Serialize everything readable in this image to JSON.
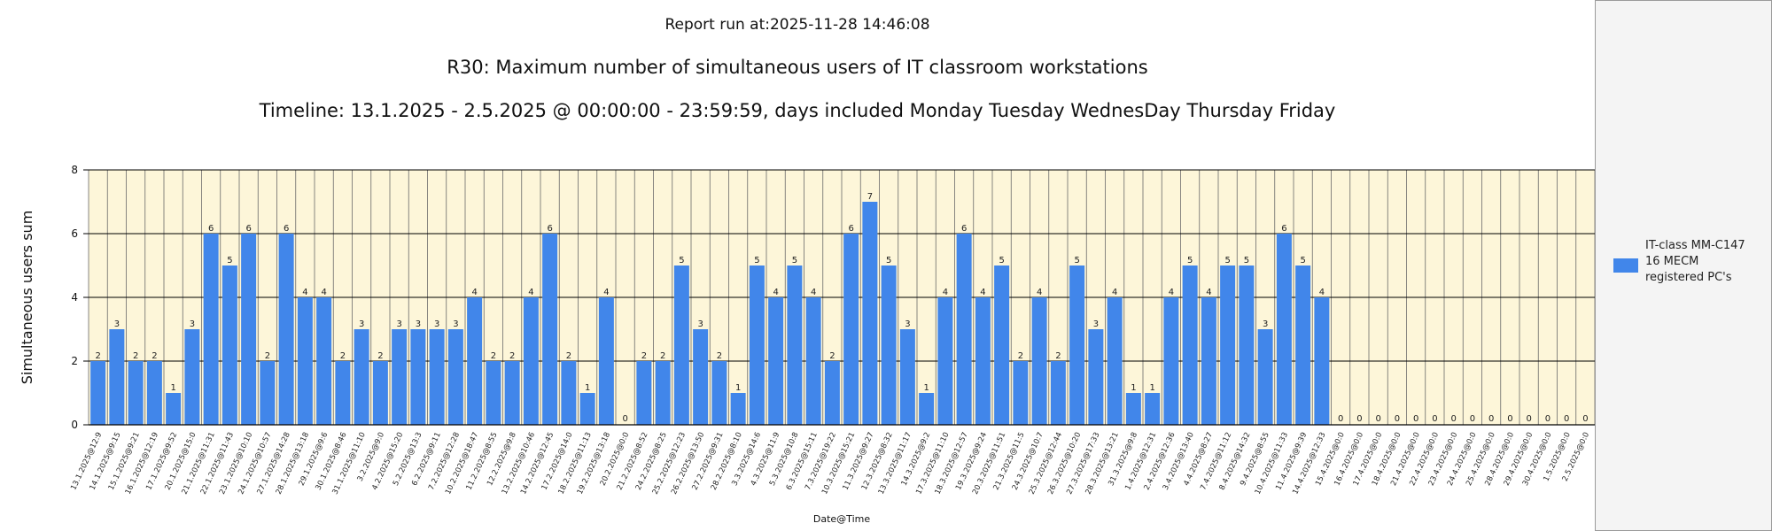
{
  "header": {
    "report_run": "Report run at:2025-11-28 14:46:08",
    "title": "R30: Maximum number of simultaneous users of IT classroom workstations",
    "subtitle": "Timeline: 13.1.2025  - 2.5.2025  @  00:00:00 -  23:59:59, days included Monday Tuesday WednesDay Thursday Friday"
  },
  "legend": {
    "label": "IT-class MM-C147\n16 MECM\n registered PC's"
  },
  "colors": {
    "bar": "#4186ea",
    "plot_bg": "#fdf6d9",
    "grid": "#000000",
    "vgrid": "#6a6a6a"
  },
  "chart_data": {
    "type": "bar",
    "xlabel": "Date@Time",
    "ylabel": "Simultaneous users sum",
    "ylim": [
      0,
      8
    ],
    "yticks": [
      0,
      2,
      4,
      6,
      8
    ],
    "grid": true,
    "legend_position": "right",
    "series": [
      {
        "name": "IT-class MM-C147 16 MECM registered PC's"
      }
    ],
    "categories": [
      "13.1.2025@12:9",
      "14.1.2025@9:15",
      "15.1.2025@9:21",
      "16.1.2025@12:19",
      "17.1.2025@9:52",
      "20.1.2025@15:0",
      "21.1.2025@11:31",
      "22.1.2025@11:43",
      "23.1.2025@10:10",
      "24.1.2025@10:57",
      "27.1.2025@14:28",
      "28.1.2025@13:18",
      "29.1.2025@9:6",
      "30.1.2025@8:46",
      "31.1.2025@11:10",
      "3.2.2025@9:0",
      "4.2.2025@15:20",
      "5.2.2025@13:3",
      "6.2.2025@9:11",
      "7.2.2025@12:28",
      "10.2.2025@18:47",
      "11.2.2025@8:55",
      "12.2.2025@9:8",
      "13.2.2025@10:46",
      "14.2.2025@12:45",
      "17.2.2025@14:0",
      "18.2.2025@11:13",
      "19.2.2025@13:18",
      "20.2.2025@0:0",
      "21.2.2025@8:52",
      "24.2.2025@8:25",
      "25.2.2025@12:23",
      "26.2.2025@13:50",
      "27.2.2025@9:31",
      "28.2.2025@8:10",
      "3.3.2025@14:6",
      "4.3.2025@11:9",
      "5.3.2025@10:8",
      "6.3.2025@15:11",
      "7.3.2025@19:22",
      "10.3.2025@15:21",
      "11.3.2025@9:27",
      "12.3.2025@8:32",
      "13.3.2025@11:17",
      "14.3.2025@9:2",
      "17.3.2025@11:10",
      "18.3.2025@12:57",
      "19.3.2025@9:24",
      "20.3.2025@11:51",
      "21.3.2025@11:5",
      "24.3.2025@10:7",
      "25.3.2025@12:44",
      "26.3.2025@10:20",
      "27.3.2025@17:33",
      "28.3.2025@13:21",
      "31.3.2025@9:8",
      "1.4.2025@12:31",
      "2.4.2025@12:36",
      "3.4.2025@13:40",
      "4.4.2025@8:27",
      "7.4.2025@11:12",
      "8.4.2025@14:32",
      "9.4.2025@8:55",
      "10.4.2025@11:33",
      "11.4.2025@9:39",
      "14.4.2025@12:33",
      "15.4.2025@0:0",
      "16.4.2025@0:0",
      "17.4.2025@0:0",
      "18.4.2025@0:0",
      "21.4.2025@0:0",
      "22.4.2025@0:0",
      "23.4.2025@0:0",
      "24.4.2025@0:0",
      "25.4.2025@0:0",
      "28.4.2025@0:0",
      "29.4.2025@0:0",
      "30.4.2025@0:0",
      "1.5.2025@0:0",
      "2.5.2025@0:0"
    ],
    "values": [
      2,
      3,
      2,
      2,
      1,
      3,
      6,
      5,
      6,
      2,
      6,
      4,
      4,
      2,
      3,
      2,
      3,
      3,
      3,
      3,
      4,
      2,
      2,
      4,
      6,
      2,
      1,
      4,
      0,
      2,
      2,
      5,
      3,
      2,
      1,
      5,
      4,
      5,
      4,
      2,
      6,
      7,
      5,
      3,
      1,
      4,
      6,
      4,
      5,
      2,
      4,
      2,
      5,
      3,
      4,
      1,
      1,
      4,
      5,
      4,
      5,
      5,
      3,
      6,
      5,
      4,
      0,
      0,
      0,
      0,
      0,
      0,
      0,
      0,
      0,
      0,
      0,
      0,
      0,
      0
    ]
  }
}
